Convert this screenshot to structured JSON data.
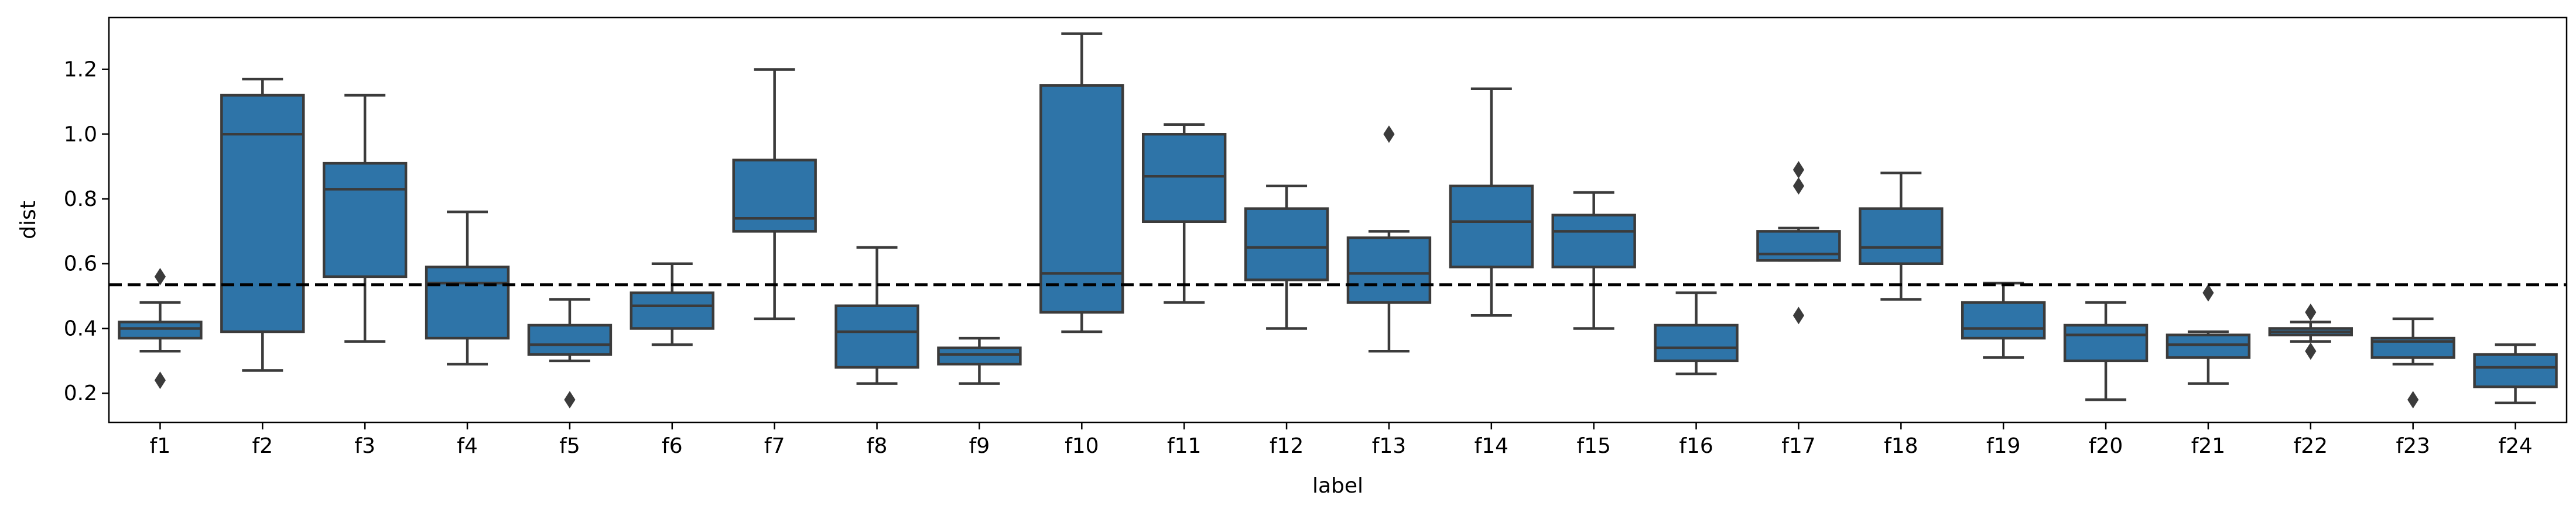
{
  "chart_data": {
    "type": "box",
    "xlabel": "label",
    "ylabel": "dist",
    "ylim": [
      0.11,
      1.36
    ],
    "yticks": [
      0.2,
      0.4,
      0.6,
      0.8,
      1.0,
      1.2
    ],
    "ytick_labels": [
      "0.2",
      "0.4",
      "0.6",
      "0.8",
      "1.0",
      "1.2"
    ],
    "reference_line": {
      "value": 0.535,
      "style": "dashed"
    },
    "box_color": "#2e74a8",
    "edge_color": "#3b3b3b",
    "categories": [
      "f1",
      "f2",
      "f3",
      "f4",
      "f5",
      "f6",
      "f7",
      "f8",
      "f9",
      "f10",
      "f11",
      "f12",
      "f13",
      "f14",
      "f15",
      "f16",
      "f17",
      "f18",
      "f19",
      "f20",
      "f21",
      "f22",
      "f23",
      "f24"
    ],
    "boxes": [
      {
        "label": "f1",
        "whisker_low": 0.33,
        "q1": 0.37,
        "median": 0.4,
        "q3": 0.42,
        "whisker_high": 0.48,
        "outliers": [
          0.24,
          0.56
        ]
      },
      {
        "label": "f2",
        "whisker_low": 0.27,
        "q1": 0.39,
        "median": 1.0,
        "q3": 1.12,
        "whisker_high": 1.17,
        "outliers": []
      },
      {
        "label": "f3",
        "whisker_low": 0.36,
        "q1": 0.56,
        "median": 0.83,
        "q3": 0.91,
        "whisker_high": 1.12,
        "outliers": []
      },
      {
        "label": "f4",
        "whisker_low": 0.29,
        "q1": 0.37,
        "median": 0.54,
        "q3": 0.59,
        "whisker_high": 0.76,
        "outliers": []
      },
      {
        "label": "f5",
        "whisker_low": 0.3,
        "q1": 0.32,
        "median": 0.35,
        "q3": 0.41,
        "whisker_high": 0.49,
        "outliers": [
          0.18
        ]
      },
      {
        "label": "f6",
        "whisker_low": 0.35,
        "q1": 0.4,
        "median": 0.47,
        "q3": 0.51,
        "whisker_high": 0.6,
        "outliers": []
      },
      {
        "label": "f7",
        "whisker_low": 0.43,
        "q1": 0.7,
        "median": 0.74,
        "q3": 0.92,
        "whisker_high": 1.2,
        "outliers": []
      },
      {
        "label": "f8",
        "whisker_low": 0.23,
        "q1": 0.28,
        "median": 0.39,
        "q3": 0.47,
        "whisker_high": 0.65,
        "outliers": []
      },
      {
        "label": "f9",
        "whisker_low": 0.23,
        "q1": 0.29,
        "median": 0.32,
        "q3": 0.34,
        "whisker_high": 0.37,
        "outliers": []
      },
      {
        "label": "f10",
        "whisker_low": 0.39,
        "q1": 0.45,
        "median": 0.57,
        "q3": 1.15,
        "whisker_high": 1.31,
        "outliers": []
      },
      {
        "label": "f11",
        "whisker_low": 0.48,
        "q1": 0.73,
        "median": 0.87,
        "q3": 1.0,
        "whisker_high": 1.03,
        "outliers": []
      },
      {
        "label": "f12",
        "whisker_low": 0.4,
        "q1": 0.55,
        "median": 0.65,
        "q3": 0.77,
        "whisker_high": 0.84,
        "outliers": []
      },
      {
        "label": "f13",
        "whisker_low": 0.33,
        "q1": 0.48,
        "median": 0.57,
        "q3": 0.68,
        "whisker_high": 0.7,
        "outliers": [
          1.0
        ]
      },
      {
        "label": "f14",
        "whisker_low": 0.44,
        "q1": 0.59,
        "median": 0.73,
        "q3": 0.84,
        "whisker_high": 1.14,
        "outliers": []
      },
      {
        "label": "f15",
        "whisker_low": 0.4,
        "q1": 0.59,
        "median": 0.7,
        "q3": 0.75,
        "whisker_high": 0.82,
        "outliers": []
      },
      {
        "label": "f16",
        "whisker_low": 0.26,
        "q1": 0.3,
        "median": 0.34,
        "q3": 0.41,
        "whisker_high": 0.51,
        "outliers": []
      },
      {
        "label": "f17",
        "whisker_low": 0.61,
        "q1": 0.61,
        "median": 0.63,
        "q3": 0.7,
        "whisker_high": 0.71,
        "outliers": [
          0.44,
          0.84,
          0.89
        ]
      },
      {
        "label": "f18",
        "whisker_low": 0.49,
        "q1": 0.6,
        "median": 0.65,
        "q3": 0.77,
        "whisker_high": 0.88,
        "outliers": []
      },
      {
        "label": "f19",
        "whisker_low": 0.31,
        "q1": 0.37,
        "median": 0.4,
        "q3": 0.48,
        "whisker_high": 0.54,
        "outliers": []
      },
      {
        "label": "f20",
        "whisker_low": 0.18,
        "q1": 0.3,
        "median": 0.38,
        "q3": 0.41,
        "whisker_high": 0.48,
        "outliers": []
      },
      {
        "label": "f21",
        "whisker_low": 0.23,
        "q1": 0.31,
        "median": 0.35,
        "q3": 0.38,
        "whisker_high": 0.39,
        "outliers": [
          0.51
        ]
      },
      {
        "label": "f22",
        "whisker_low": 0.36,
        "q1": 0.38,
        "median": 0.39,
        "q3": 0.4,
        "whisker_high": 0.42,
        "outliers": [
          0.33,
          0.45
        ]
      },
      {
        "label": "f23",
        "whisker_low": 0.29,
        "q1": 0.31,
        "median": 0.36,
        "q3": 0.37,
        "whisker_high": 0.43,
        "outliers": [
          0.18
        ]
      },
      {
        "label": "f24",
        "whisker_low": 0.17,
        "q1": 0.22,
        "median": 0.28,
        "q3": 0.32,
        "whisker_high": 0.35,
        "outliers": []
      }
    ]
  }
}
